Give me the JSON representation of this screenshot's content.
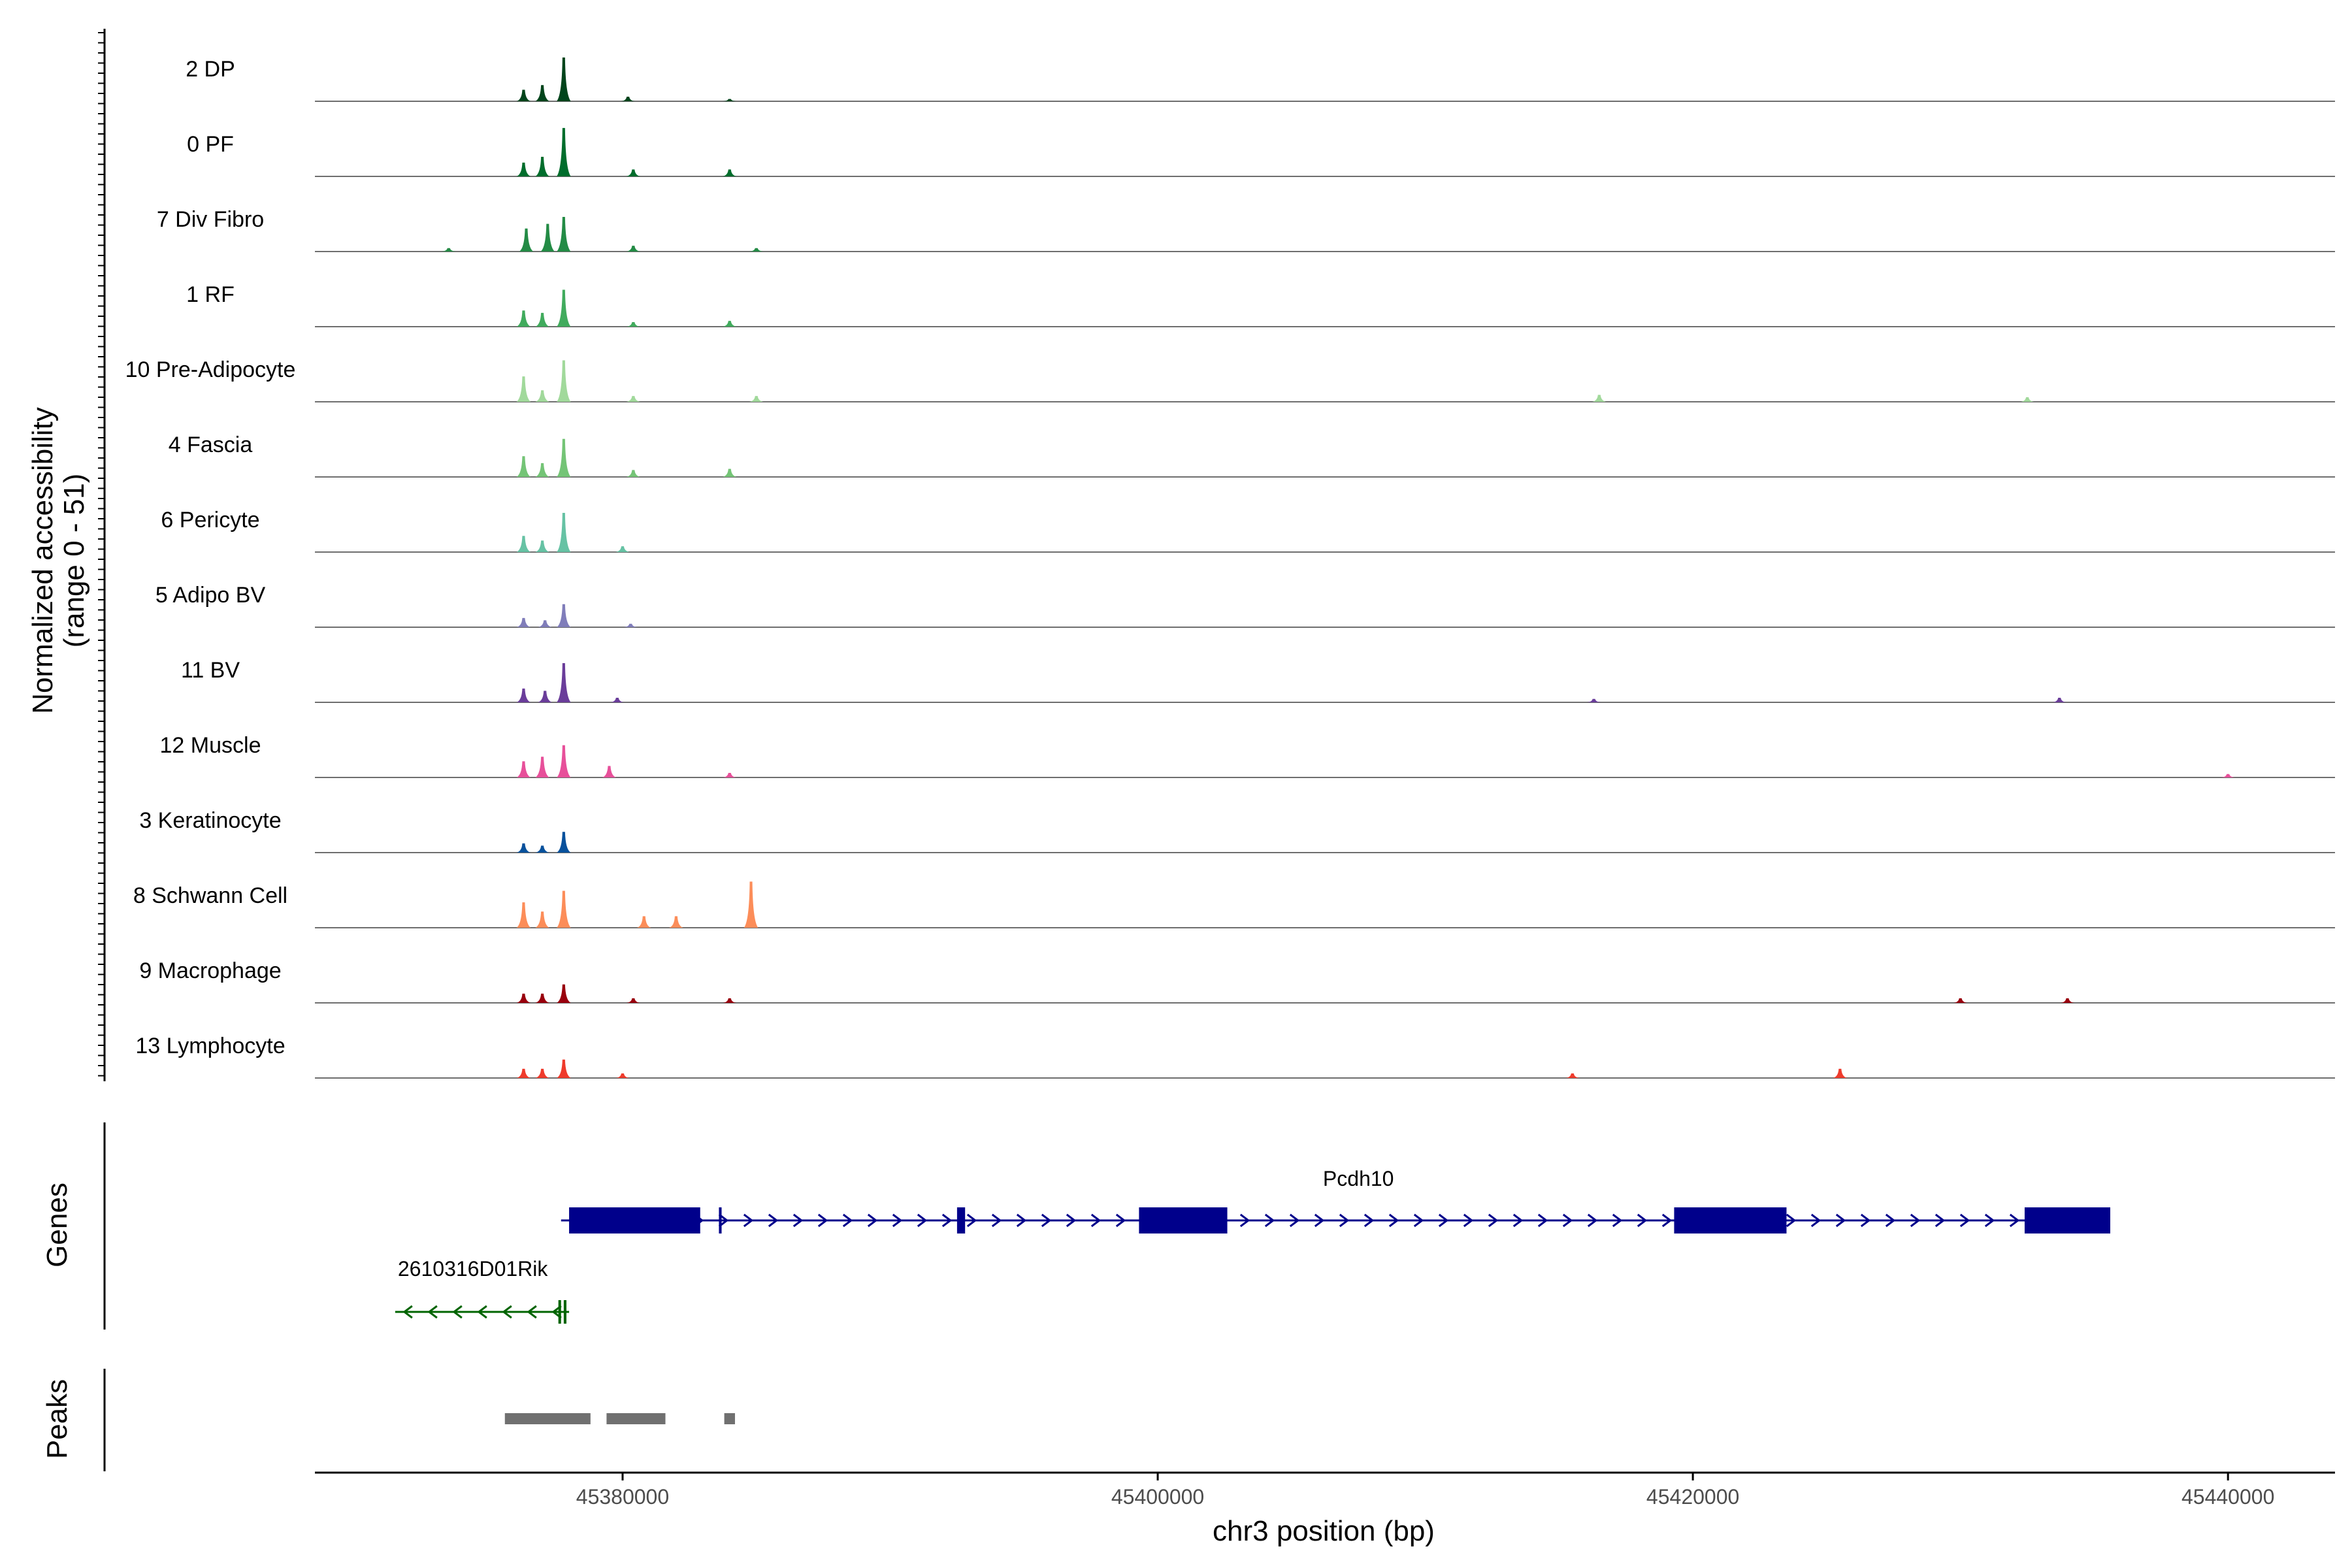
{
  "chart_data": {
    "type": "area",
    "y_axis_title": [
      "Normalized accessibility",
      "(range 0 - 51)"
    ],
    "ylim": [
      0,
      51
    ],
    "x_axis_title": "chr3 position (bp)",
    "xlim": [
      45368500,
      45444000
    ],
    "x_ticks": [
      45380000,
      45400000,
      45420000,
      45440000
    ],
    "x_tick_labels": [
      "45380000",
      "45400000",
      "45420000",
      "45440000"
    ],
    "gene_track_label": "Genes",
    "peak_track_label": "Peaks",
    "tracks": [
      {
        "label": "2 DP",
        "color": "#00441b",
        "peaks": [
          [
            45377800,
            38
          ],
          [
            45377000,
            14
          ],
          [
            45376300,
            10
          ],
          [
            45380200,
            4
          ],
          [
            45384000,
            2
          ]
        ]
      },
      {
        "label": "0 PF",
        "color": "#006d2c",
        "peaks": [
          [
            45377800,
            42
          ],
          [
            45377000,
            17
          ],
          [
            45376300,
            12
          ],
          [
            45380400,
            6
          ],
          [
            45384000,
            6
          ]
        ]
      },
      {
        "label": "7 Div Fibro",
        "color": "#238b45",
        "peaks": [
          [
            45377800,
            30
          ],
          [
            45377200,
            24
          ],
          [
            45376400,
            20
          ],
          [
            45380400,
            5
          ],
          [
            45385000,
            3
          ],
          [
            45373500,
            3
          ]
        ]
      },
      {
        "label": "1 RF",
        "color": "#41ab5d",
        "peaks": [
          [
            45377800,
            32
          ],
          [
            45377000,
            12
          ],
          [
            45376300,
            14
          ],
          [
            45380400,
            4
          ],
          [
            45384000,
            5
          ]
        ]
      },
      {
        "label": "10 Pre-Adipocyte",
        "color": "#a1d99b",
        "peaks": [
          [
            45377800,
            36
          ],
          [
            45376300,
            22
          ],
          [
            45377000,
            10
          ],
          [
            45380400,
            5
          ],
          [
            45385000,
            5
          ],
          [
            45416500,
            6
          ],
          [
            45432500,
            4
          ]
        ]
      },
      {
        "label": "4 Fascia",
        "color": "#74c476",
        "peaks": [
          [
            45377800,
            33
          ],
          [
            45376300,
            18
          ],
          [
            45377000,
            12
          ],
          [
            45380400,
            6
          ],
          [
            45384000,
            7
          ]
        ]
      },
      {
        "label": "6 Pericyte",
        "color": "#66c2a4",
        "peaks": [
          [
            45377800,
            34
          ],
          [
            45376300,
            14
          ],
          [
            45377000,
            10
          ],
          [
            45380000,
            5
          ]
        ]
      },
      {
        "label": "5 Adipo BV",
        "color": "#807dba",
        "peaks": [
          [
            45377800,
            20
          ],
          [
            45376300,
            8
          ],
          [
            45377100,
            6
          ],
          [
            45380300,
            3
          ]
        ]
      },
      {
        "label": "11 BV",
        "color": "#6a3d9a",
        "peaks": [
          [
            45377800,
            34
          ],
          [
            45376300,
            12
          ],
          [
            45377100,
            10
          ],
          [
            45379800,
            4
          ],
          [
            45416300,
            3
          ],
          [
            45433700,
            4
          ]
        ]
      },
      {
        "label": "12 Muscle",
        "color": "#e7509a",
        "peaks": [
          [
            45377800,
            28
          ],
          [
            45376300,
            14
          ],
          [
            45377000,
            18
          ],
          [
            45379500,
            10
          ],
          [
            45384000,
            4
          ],
          [
            45440000,
            3
          ]
        ]
      },
      {
        "label": "3 Keratinocyte",
        "color": "#08519c",
        "peaks": [
          [
            45377800,
            18
          ],
          [
            45376300,
            8
          ],
          [
            45377000,
            6
          ]
        ]
      },
      {
        "label": "8 Schwann Cell",
        "color": "#fc8d59",
        "peaks": [
          [
            45377800,
            32
          ],
          [
            45376300,
            22
          ],
          [
            45377000,
            14
          ],
          [
            45380800,
            10
          ],
          [
            45384800,
            40
          ],
          [
            45382000,
            10
          ]
        ]
      },
      {
        "label": "9 Macrophage",
        "color": "#99000d",
        "peaks": [
          [
            45377800,
            16
          ],
          [
            45376300,
            8
          ],
          [
            45377000,
            8
          ],
          [
            45380400,
            4
          ],
          [
            45384000,
            4
          ],
          [
            45430000,
            4
          ],
          [
            45434000,
            4
          ]
        ]
      },
      {
        "label": "13 Lymphocyte",
        "color": "#ef3b2c",
        "peaks": [
          [
            45377800,
            16
          ],
          [
            45376300,
            8
          ],
          [
            45377000,
            8
          ],
          [
            45380000,
            4
          ],
          [
            45415500,
            4
          ],
          [
            45425500,
            8
          ]
        ]
      }
    ],
    "genes": [
      {
        "name": "Pcdh10",
        "strand": "+",
        "start": 45377700,
        "end": 45435600,
        "color": "#00008b",
        "exons": [
          [
            45378000,
            45382900
          ],
          [
            45383600,
            45383700
          ],
          [
            45392500,
            45392800
          ],
          [
            45399300,
            45402600
          ],
          [
            45419300,
            45423500
          ],
          [
            45432400,
            45435600
          ]
        ]
      },
      {
        "name": "2610316D01Rik",
        "strand": "-",
        "start": 45371500,
        "end": 45378000,
        "color": "#006400",
        "exons": [
          [
            45377600,
            45377700
          ],
          [
            45377800,
            45377900
          ]
        ]
      }
    ],
    "peaks": [
      [
        45375600,
        45378800
      ],
      [
        45379400,
        45381600
      ],
      [
        45383800,
        45384200
      ]
    ],
    "peak_color": "#707070"
  }
}
